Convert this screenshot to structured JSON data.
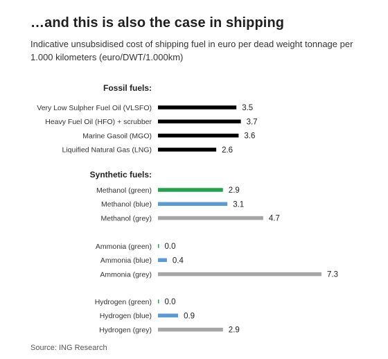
{
  "title": "…and this is also the case in shipping",
  "subtitle": "Indicative unsubsidised cost of shipping fuel in euro per dead weight tonnage per 1.000 kilometers (euro/DWT/1.000km)",
  "source": "Source: ING Research",
  "colors": {
    "black": "#000000",
    "green": "#21a34a",
    "blue": "#5b9bd5",
    "grey": "#a6a6a6"
  },
  "chart_data": {
    "type": "bar",
    "orientation": "horizontal",
    "groups": [
      {
        "label": "Fossil fuels:",
        "bars": [
          {
            "label": "Very Low Sulpher Fuel Oil (VLSFO)",
            "value": 3.5,
            "display": "3.5",
            "color": "black"
          },
          {
            "label": "Heavy Fuel Oil (HFO) + scrubber",
            "value": 3.7,
            "display": "3.7",
            "color": "black"
          },
          {
            "label": "Marine Gasoil (MGO)",
            "value": 3.6,
            "display": "3.6",
            "color": "black"
          },
          {
            "label": "Liquified Natural Gas (LNG)",
            "value": 2.6,
            "display": "2.6",
            "color": "black"
          }
        ]
      },
      {
        "label": "Synthetic fuels:",
        "bars": [
          {
            "label": "Methanol (green)",
            "value": 2.9,
            "display": "2.9",
            "color": "green"
          },
          {
            "label": "Methanol (blue)",
            "value": 3.1,
            "display": "3.1",
            "color": "blue"
          },
          {
            "label": "Methanol (grey)",
            "value": 4.7,
            "display": "4.7",
            "color": "grey"
          }
        ]
      },
      {
        "label": "",
        "bars": [
          {
            "label": "Ammonia (green)",
            "value": 0.0,
            "display": "0.0",
            "color": "green"
          },
          {
            "label": "Ammonia (blue)",
            "value": 0.4,
            "display": "0.4",
            "color": "blue"
          },
          {
            "label": "Ammonia (grey)",
            "value": 7.3,
            "display": "7.3",
            "color": "grey"
          }
        ]
      },
      {
        "label": "",
        "bars": [
          {
            "label": "Hydrogen (green)",
            "value": 0.0,
            "display": "0.0",
            "color": "green"
          },
          {
            "label": "Hydrogen (blue)",
            "value": 0.9,
            "display": "0.9",
            "color": "blue"
          },
          {
            "label": "Hydrogen (grey)",
            "value": 2.9,
            "display": "2.9",
            "color": "grey"
          }
        ]
      }
    ],
    "xlim": [
      0,
      7.3
    ],
    "grid": false,
    "legend": "none"
  }
}
